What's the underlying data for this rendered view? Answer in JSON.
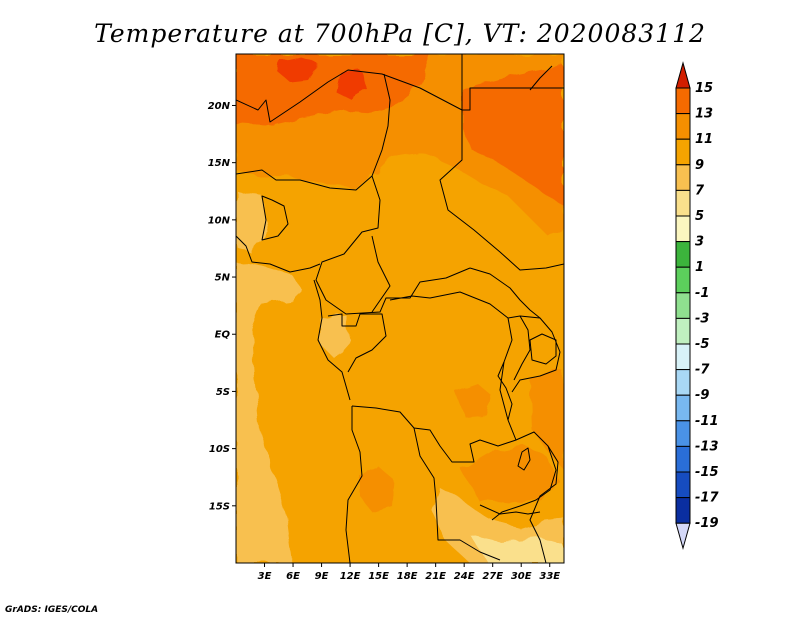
{
  "title": "Temperature at 700hPa [C], VT: 2020083112",
  "credit": "GrADS: IGES/COLA",
  "map": {
    "lon_range": [
      0,
      34.5
    ],
    "lat_range": [
      -20,
      24.5
    ],
    "lon_ticks": [
      {
        "value": 3,
        "label": "3E"
      },
      {
        "value": 6,
        "label": "6E"
      },
      {
        "value": 9,
        "label": "9E"
      },
      {
        "value": 12,
        "label": "12E"
      },
      {
        "value": 15,
        "label": "15E"
      },
      {
        "value": 18,
        "label": "18E"
      },
      {
        "value": 21,
        "label": "21E"
      },
      {
        "value": 24,
        "label": "24E"
      },
      {
        "value": 27,
        "label": "27E"
      },
      {
        "value": 30,
        "label": "30E"
      },
      {
        "value": 33,
        "label": "33E"
      }
    ],
    "lat_ticks": [
      {
        "value": 20,
        "label": "20N"
      },
      {
        "value": 15,
        "label": "15N"
      },
      {
        "value": 10,
        "label": "10N"
      },
      {
        "value": 5,
        "label": "5N"
      },
      {
        "value": 0,
        "label": "EQ"
      },
      {
        "value": -5,
        "label": "5S"
      },
      {
        "value": -10,
        "label": "10S"
      },
      {
        "value": -15,
        "label": "15S"
      }
    ],
    "background_color": "#f5a300"
  },
  "colorbar": {
    "levels": [
      "15",
      "13",
      "11",
      "9",
      "7",
      "5",
      "3",
      "1",
      "-1",
      "-3",
      "-5",
      "-7",
      "-9",
      "-11",
      "-13",
      "-15",
      "-17",
      "-19"
    ],
    "colors": [
      "#f03a00",
      "#f56a00",
      "#f58f00",
      "#f5a300",
      "#f8c050",
      "#fae08c",
      "#fbf6c0",
      "#3cb43c",
      "#5ccf5c",
      "#8fe08f",
      "#c0f0c0",
      "#d8f2f8",
      "#a9d8f5",
      "#78b8f0",
      "#4a92e6",
      "#2a6ed8",
      "#164cc0",
      "#0a2ea0",
      "#041a6e"
    ],
    "top_arrow_color": "#d21e00",
    "bottom_arrow_color": "#d4d8f8"
  }
}
